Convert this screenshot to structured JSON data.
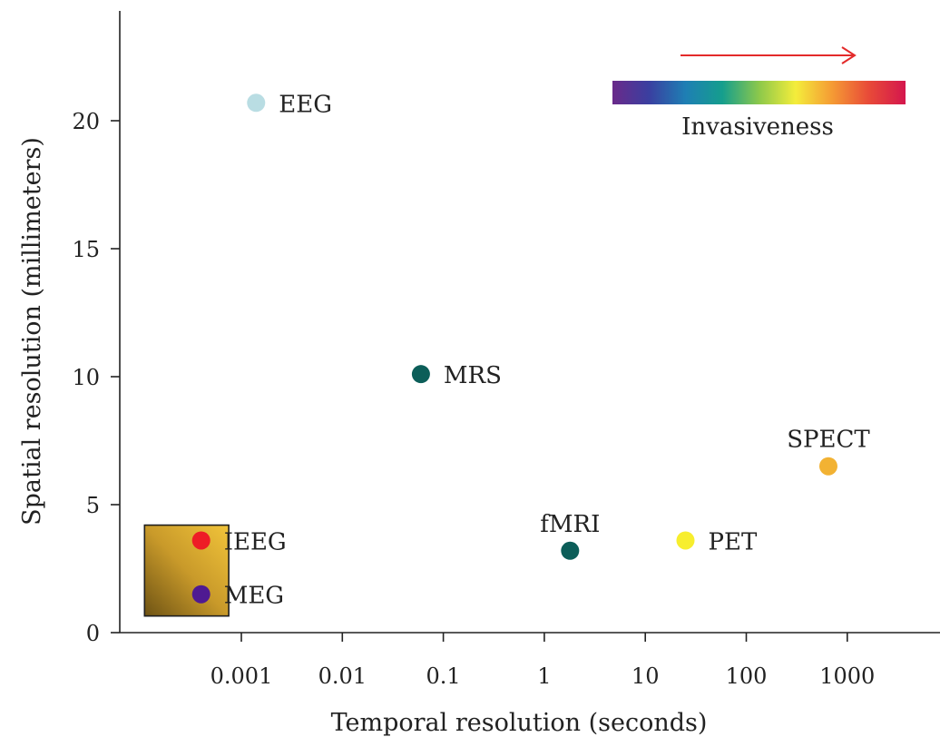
{
  "chart_data": {
    "type": "scatter",
    "xlabel": "Temporal resolution (seconds)",
    "ylabel": "Spatial resolution (millimeters)",
    "x_scale": "log",
    "x_ticks": [
      {
        "value": 0.001,
        "label": "0.001"
      },
      {
        "value": 0.01,
        "label": "0.01"
      },
      {
        "value": 0.1,
        "label": "0.1"
      },
      {
        "value": 1,
        "label": "1"
      },
      {
        "value": 10,
        "label": "10"
      },
      {
        "value": 100,
        "label": "100"
      },
      {
        "value": 1000,
        "label": "1000"
      }
    ],
    "y_ticks": [
      {
        "value": 0,
        "label": "0"
      },
      {
        "value": 5,
        "label": "5"
      },
      {
        "value": 10,
        "label": "10"
      },
      {
        "value": 15,
        "label": "15"
      },
      {
        "value": 20,
        "label": "20"
      }
    ],
    "xlim": [
      5e-05,
      10000
    ],
    "ylim": [
      0,
      24
    ],
    "grid": false,
    "points": [
      {
        "label": "EEG",
        "x": 0.0014,
        "y": 20.7,
        "color": "#b9dde3",
        "label_pos": "right"
      },
      {
        "label": "MRS",
        "x": 0.06,
        "y": 10.1,
        "color": "#0c5e59",
        "label_pos": "right"
      },
      {
        "label": "fMRI",
        "x": 1.8,
        "y": 3.2,
        "color": "#0c5e59",
        "label_pos": "above"
      },
      {
        "label": "PET",
        "x": 25,
        "y": 3.6,
        "color": "#f7ee2e",
        "label_pos": "right"
      },
      {
        "label": "SPECT",
        "x": 650,
        "y": 6.5,
        "color": "#f2b233",
        "label_pos": "above"
      },
      {
        "label": "IEEG",
        "x": 0.0004,
        "y": 3.6,
        "color": "#ee1c26",
        "label_pos": "right"
      },
      {
        "label": "MEG",
        "x": 0.0004,
        "y": 1.5,
        "color": "#4f1a92",
        "label_pos": "right"
      }
    ],
    "highlight_box": {
      "x_range": [
        0.00011,
        0.00075
      ],
      "y_range": [
        0.65,
        4.2
      ]
    },
    "invasiveness_legend": {
      "label": "Invasiveness",
      "position": "top-right",
      "arrow_color": "#e32a2a",
      "gradient": [
        "#6a2a8a",
        "#3a3fa0",
        "#1e7fb4",
        "#159e8d",
        "#8cc84b",
        "#f4ed3b",
        "#f59a34",
        "#e84a38",
        "#d4164d"
      ]
    }
  }
}
